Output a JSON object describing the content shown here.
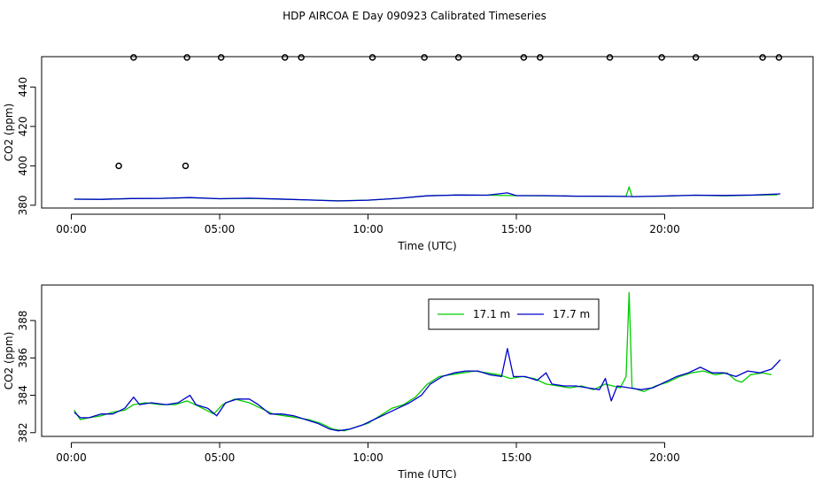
{
  "title": "HDP AIRCOA E  Day 090923  Calibrated Timeseries",
  "chart_data": [
    {
      "type": "scatter+line",
      "xlabel": "Time (UTC)",
      "ylabel": "CO2 (ppm)",
      "xticks": [
        {
          "value": 0,
          "label": "00:00"
        },
        {
          "value": 5,
          "label": "05:00"
        },
        {
          "value": 10,
          "label": "10:00"
        },
        {
          "value": 15,
          "label": "15:00"
        },
        {
          "value": 20,
          "label": "20:00"
        }
      ],
      "yticks": [
        380,
        400,
        420,
        440
      ],
      "xlim": [
        -1,
        25
      ],
      "ylim": [
        378.6,
        455.4
      ],
      "outliers": {
        "color": "#000000",
        "points": [
          [
            1.6,
            400
          ],
          [
            2.1,
            455
          ],
          [
            3.85,
            400
          ],
          [
            3.9,
            455
          ],
          [
            5.05,
            455
          ],
          [
            7.2,
            455
          ],
          [
            7.75,
            455
          ],
          [
            10.15,
            455
          ],
          [
            11.9,
            455
          ],
          [
            13.05,
            455
          ],
          [
            15.25,
            455
          ],
          [
            15.8,
            455
          ],
          [
            18.15,
            455
          ],
          [
            19.9,
            455
          ],
          [
            21.05,
            455
          ],
          [
            23.3,
            455
          ],
          [
            23.85,
            455
          ]
        ]
      },
      "series": [
        {
          "name": "17.1 m",
          "color": "#00cc00",
          "points": [
            [
              0.1,
              383.1
            ],
            [
              1,
              383
            ],
            [
              2,
              383.4
            ],
            [
              3,
              383.5
            ],
            [
              4,
              383.8
            ],
            [
              5,
              383.3
            ],
            [
              6,
              383.5
            ],
            [
              7,
              383.1
            ],
            [
              8,
              382.7
            ],
            [
              9,
              382.3
            ],
            [
              10,
              382.6
            ],
            [
              11,
              383.5
            ],
            [
              12,
              384.8
            ],
            [
              13,
              385.2
            ],
            [
              14,
              385.1
            ],
            [
              15,
              384.9
            ],
            [
              16,
              384.8
            ],
            [
              17,
              384.6
            ],
            [
              18,
              384.5
            ],
            [
              18.7,
              384.6
            ],
            [
              18.8,
              389.3
            ],
            [
              18.9,
              384.4
            ],
            [
              20,
              384.6
            ],
            [
              21,
              385.1
            ],
            [
              22,
              384.8
            ],
            [
              23,
              385.1
            ],
            [
              23.8,
              385.3
            ]
          ]
        },
        {
          "name": "17.7 m",
          "color": "#0000cc",
          "points": [
            [
              0.1,
              383.1
            ],
            [
              1,
              383
            ],
            [
              2,
              383.4
            ],
            [
              3,
              383.5
            ],
            [
              4,
              383.9
            ],
            [
              5,
              383.3
            ],
            [
              6,
              383.6
            ],
            [
              7,
              383.2
            ],
            [
              8,
              382.7
            ],
            [
              9,
              382.2
            ],
            [
              10,
              382.6
            ],
            [
              11,
              383.5
            ],
            [
              12,
              384.8
            ],
            [
              13,
              385.2
            ],
            [
              14,
              385.1
            ],
            [
              14.7,
              386.3
            ],
            [
              15,
              384.9
            ],
            [
              16,
              384.9
            ],
            [
              17,
              384.6
            ],
            [
              18,
              384.6
            ],
            [
              19,
              384.4
            ],
            [
              20,
              384.7
            ],
            [
              21,
              385.1
            ],
            [
              22,
              385
            ],
            [
              23,
              385.2
            ],
            [
              23.9,
              385.8
            ]
          ]
        }
      ]
    },
    {
      "type": "line",
      "xlabel": "Time (UTC)",
      "ylabel": "CO2 (ppm)",
      "xticks": [
        {
          "value": 0,
          "label": "00:00"
        },
        {
          "value": 5,
          "label": "05:00"
        },
        {
          "value": 10,
          "label": "10:00"
        },
        {
          "value": 15,
          "label": "15:00"
        },
        {
          "value": 20,
          "label": "20:00"
        }
      ],
      "yticks": [
        382,
        384,
        386,
        388
      ],
      "xlim": [
        -1,
        25
      ],
      "ylim": [
        381.8,
        389.9
      ],
      "legend": {
        "position": "top-center",
        "entries": [
          "17.1 m",
          "17.7 m"
        ]
      },
      "series": [
        {
          "name": "17.1 m",
          "color": "#00cc00",
          "points": [
            [
              0.1,
              383.2
            ],
            [
              0.3,
              382.7
            ],
            [
              0.6,
              382.8
            ],
            [
              1.0,
              382.9
            ],
            [
              1.4,
              383.1
            ],
            [
              1.8,
              383.2
            ],
            [
              2.1,
              383.5
            ],
            [
              2.5,
              383.6
            ],
            [
              3.0,
              383.5
            ],
            [
              3.5,
              383.5
            ],
            [
              3.9,
              383.7
            ],
            [
              4.3,
              383.4
            ],
            [
              4.8,
              383.0
            ],
            [
              5.1,
              383.5
            ],
            [
              5.5,
              383.8
            ],
            [
              6.0,
              383.6
            ],
            [
              6.4,
              383.3
            ],
            [
              6.8,
              383.0
            ],
            [
              7.2,
              382.9
            ],
            [
              7.6,
              382.8
            ],
            [
              8.0,
              382.7
            ],
            [
              8.4,
              382.5
            ],
            [
              8.8,
              382.2
            ],
            [
              9.2,
              382.1
            ],
            [
              9.6,
              382.3
            ],
            [
              10.0,
              382.5
            ],
            [
              10.4,
              382.9
            ],
            [
              10.8,
              383.3
            ],
            [
              11.2,
              383.5
            ],
            [
              11.6,
              383.9
            ],
            [
              12.0,
              384.6
            ],
            [
              12.4,
              385.0
            ],
            [
              12.8,
              385.1
            ],
            [
              13.2,
              385.2
            ],
            [
              13.6,
              385.3
            ],
            [
              14.0,
              385.2
            ],
            [
              14.4,
              385.1
            ],
            [
              14.8,
              384.9
            ],
            [
              15.2,
              385.0
            ],
            [
              15.6,
              384.9
            ],
            [
              16.0,
              384.6
            ],
            [
              16.4,
              384.5
            ],
            [
              16.8,
              384.4
            ],
            [
              17.2,
              384.5
            ],
            [
              17.6,
              384.3
            ],
            [
              18.0,
              384.6
            ],
            [
              18.5,
              384.4
            ],
            [
              18.7,
              385.0
            ],
            [
              18.8,
              389.5
            ],
            [
              18.9,
              384.4
            ],
            [
              19.3,
              384.2
            ],
            [
              19.7,
              384.5
            ],
            [
              20.1,
              384.7
            ],
            [
              20.5,
              385.0
            ],
            [
              20.9,
              385.2
            ],
            [
              21.3,
              385.3
            ],
            [
              21.7,
              385.1
            ],
            [
              22.1,
              385.2
            ],
            [
              22.4,
              384.8
            ],
            [
              22.6,
              384.7
            ],
            [
              22.9,
              385.1
            ],
            [
              23.3,
              385.2
            ],
            [
              23.6,
              385.1
            ]
          ]
        },
        {
          "name": "17.7 m",
          "color": "#0000cc",
          "points": [
            [
              0.1,
              383.1
            ],
            [
              0.3,
              382.8
            ],
            [
              0.6,
              382.8
            ],
            [
              1.0,
              383.0
            ],
            [
              1.4,
              383.0
            ],
            [
              1.8,
              383.3
            ],
            [
              2.1,
              383.9
            ],
            [
              2.3,
              383.5
            ],
            [
              2.7,
              383.6
            ],
            [
              3.2,
              383.5
            ],
            [
              3.6,
              383.6
            ],
            [
              4.0,
              384.0
            ],
            [
              4.2,
              383.5
            ],
            [
              4.6,
              383.3
            ],
            [
              4.9,
              382.9
            ],
            [
              5.2,
              383.6
            ],
            [
              5.6,
              383.8
            ],
            [
              6.0,
              383.8
            ],
            [
              6.3,
              383.5
            ],
            [
              6.7,
              383.0
            ],
            [
              7.1,
              383.0
            ],
            [
              7.5,
              382.9
            ],
            [
              7.9,
              382.7
            ],
            [
              8.3,
              382.5
            ],
            [
              8.7,
              382.2
            ],
            [
              9.0,
              382.1
            ],
            [
              9.4,
              382.2
            ],
            [
              9.8,
              382.4
            ],
            [
              10.2,
              382.7
            ],
            [
              10.6,
              383.0
            ],
            [
              11.0,
              383.3
            ],
            [
              11.4,
              383.6
            ],
            [
              11.8,
              384.0
            ],
            [
              12.1,
              384.6
            ],
            [
              12.5,
              385.0
            ],
            [
              12.9,
              385.2
            ],
            [
              13.3,
              385.3
            ],
            [
              13.7,
              385.3
            ],
            [
              14.1,
              385.1
            ],
            [
              14.5,
              385.0
            ],
            [
              14.7,
              386.5
            ],
            [
              14.9,
              385.0
            ],
            [
              15.3,
              385.0
            ],
            [
              15.7,
              384.8
            ],
            [
              16.0,
              385.2
            ],
            [
              16.2,
              384.6
            ],
            [
              16.6,
              384.5
            ],
            [
              17.0,
              384.5
            ],
            [
              17.4,
              384.4
            ],
            [
              17.8,
              384.3
            ],
            [
              18.0,
              384.9
            ],
            [
              18.2,
              383.7
            ],
            [
              18.4,
              384.5
            ],
            [
              18.8,
              384.4
            ],
            [
              19.2,
              384.3
            ],
            [
              19.6,
              384.4
            ],
            [
              20.0,
              384.7
            ],
            [
              20.4,
              385.0
            ],
            [
              20.8,
              385.2
            ],
            [
              21.2,
              385.5
            ],
            [
              21.6,
              385.2
            ],
            [
              22.0,
              385.2
            ],
            [
              22.4,
              385.0
            ],
            [
              22.8,
              385.3
            ],
            [
              23.2,
              385.2
            ],
            [
              23.6,
              385.4
            ],
            [
              23.9,
              385.9
            ]
          ]
        }
      ]
    }
  ]
}
